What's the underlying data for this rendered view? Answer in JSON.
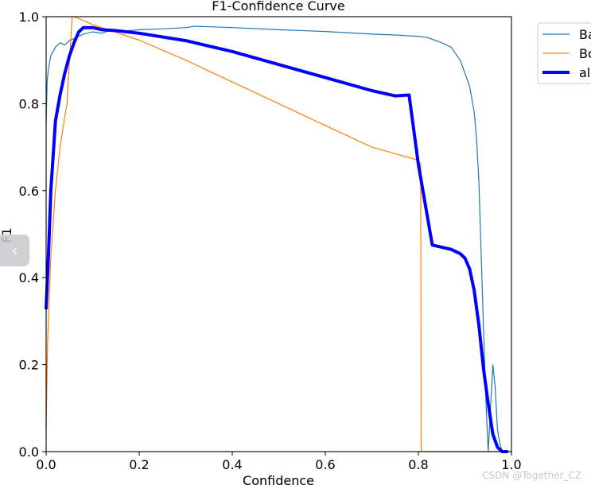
{
  "chart_data": {
    "type": "line",
    "title": "F1-Confidence Curve",
    "xlabel": "Confidence",
    "ylabel": "F1",
    "xlim": [
      0,
      1
    ],
    "ylim": [
      0,
      1
    ],
    "xticks": [
      "0.0",
      "0.2",
      "0.4",
      "0.6",
      "0.8",
      "1.0"
    ],
    "yticks": [
      "0.0",
      "0.2",
      "0.4",
      "0.6",
      "0.8",
      "1.0"
    ],
    "grid": false,
    "legend_position": "outside-top-right",
    "series": [
      {
        "name": "Ba",
        "color": "#1f77b4",
        "linewidth": 1.2,
        "x": [
          0.0,
          0.002,
          0.005,
          0.01,
          0.015,
          0.02,
          0.03,
          0.04,
          0.05,
          0.06,
          0.07,
          0.08,
          0.1,
          0.12,
          0.14,
          0.16,
          0.18,
          0.2,
          0.25,
          0.3,
          0.32,
          0.4,
          0.5,
          0.6,
          0.7,
          0.75,
          0.78,
          0.8,
          0.82,
          0.85,
          0.87,
          0.89,
          0.9,
          0.91,
          0.92,
          0.925,
          0.93,
          0.935,
          0.94,
          0.945,
          0.95,
          0.955,
          0.96,
          0.965,
          0.97,
          0.975,
          0.98,
          0.99,
          1.0
        ],
        "y": [
          0.75,
          0.85,
          0.88,
          0.91,
          0.92,
          0.93,
          0.94,
          0.935,
          0.945,
          0.95,
          0.955,
          0.96,
          0.965,
          0.962,
          0.97,
          0.965,
          0.968,
          0.97,
          0.972,
          0.975,
          0.978,
          0.975,
          0.97,
          0.966,
          0.96,
          0.958,
          0.956,
          0.955,
          0.952,
          0.94,
          0.93,
          0.9,
          0.87,
          0.84,
          0.78,
          0.72,
          0.62,
          0.45,
          0.28,
          0.12,
          0.0,
          0.1,
          0.2,
          0.15,
          0.05,
          0.02,
          0.0,
          0.0,
          0.0
        ]
      },
      {
        "name": "Bo",
        "color": "#ff7f0e",
        "linewidth": 1.2,
        "x": [
          0.0,
          0.003,
          0.01,
          0.02,
          0.03,
          0.04,
          0.045,
          0.05,
          0.056,
          0.06,
          0.1,
          0.2,
          0.3,
          0.4,
          0.5,
          0.6,
          0.7,
          0.75,
          0.8,
          0.805,
          0.806,
          1.0
        ],
        "y": [
          0.05,
          0.25,
          0.45,
          0.6,
          0.7,
          0.77,
          0.8,
          0.9,
          1.0,
          1.0,
          0.982,
          0.946,
          0.9,
          0.85,
          0.8,
          0.75,
          0.7,
          0.685,
          0.67,
          0.66,
          0.0,
          0.0
        ]
      },
      {
        "name": "al",
        "color": "#0000ff",
        "linewidth": 4,
        "x": [
          0.0,
          0.005,
          0.01,
          0.02,
          0.03,
          0.04,
          0.05,
          0.06,
          0.07,
          0.08,
          0.1,
          0.12,
          0.15,
          0.2,
          0.3,
          0.4,
          0.5,
          0.6,
          0.7,
          0.75,
          0.78,
          0.8,
          0.83,
          0.85,
          0.87,
          0.89,
          0.9,
          0.91,
          0.92,
          0.93,
          0.94,
          0.95,
          0.96,
          0.97,
          0.98,
          0.99
        ],
        "y": [
          0.33,
          0.45,
          0.6,
          0.76,
          0.82,
          0.87,
          0.91,
          0.94,
          0.965,
          0.975,
          0.975,
          0.97,
          0.968,
          0.962,
          0.945,
          0.92,
          0.89,
          0.86,
          0.83,
          0.818,
          0.82,
          0.66,
          0.475,
          0.47,
          0.465,
          0.455,
          0.445,
          0.42,
          0.37,
          0.29,
          0.19,
          0.11,
          0.04,
          0.01,
          0.0,
          0.0
        ]
      }
    ]
  },
  "ui": {
    "nav_arrow_label": "‹",
    "watermark": "CSDN @Together_CZ"
  }
}
